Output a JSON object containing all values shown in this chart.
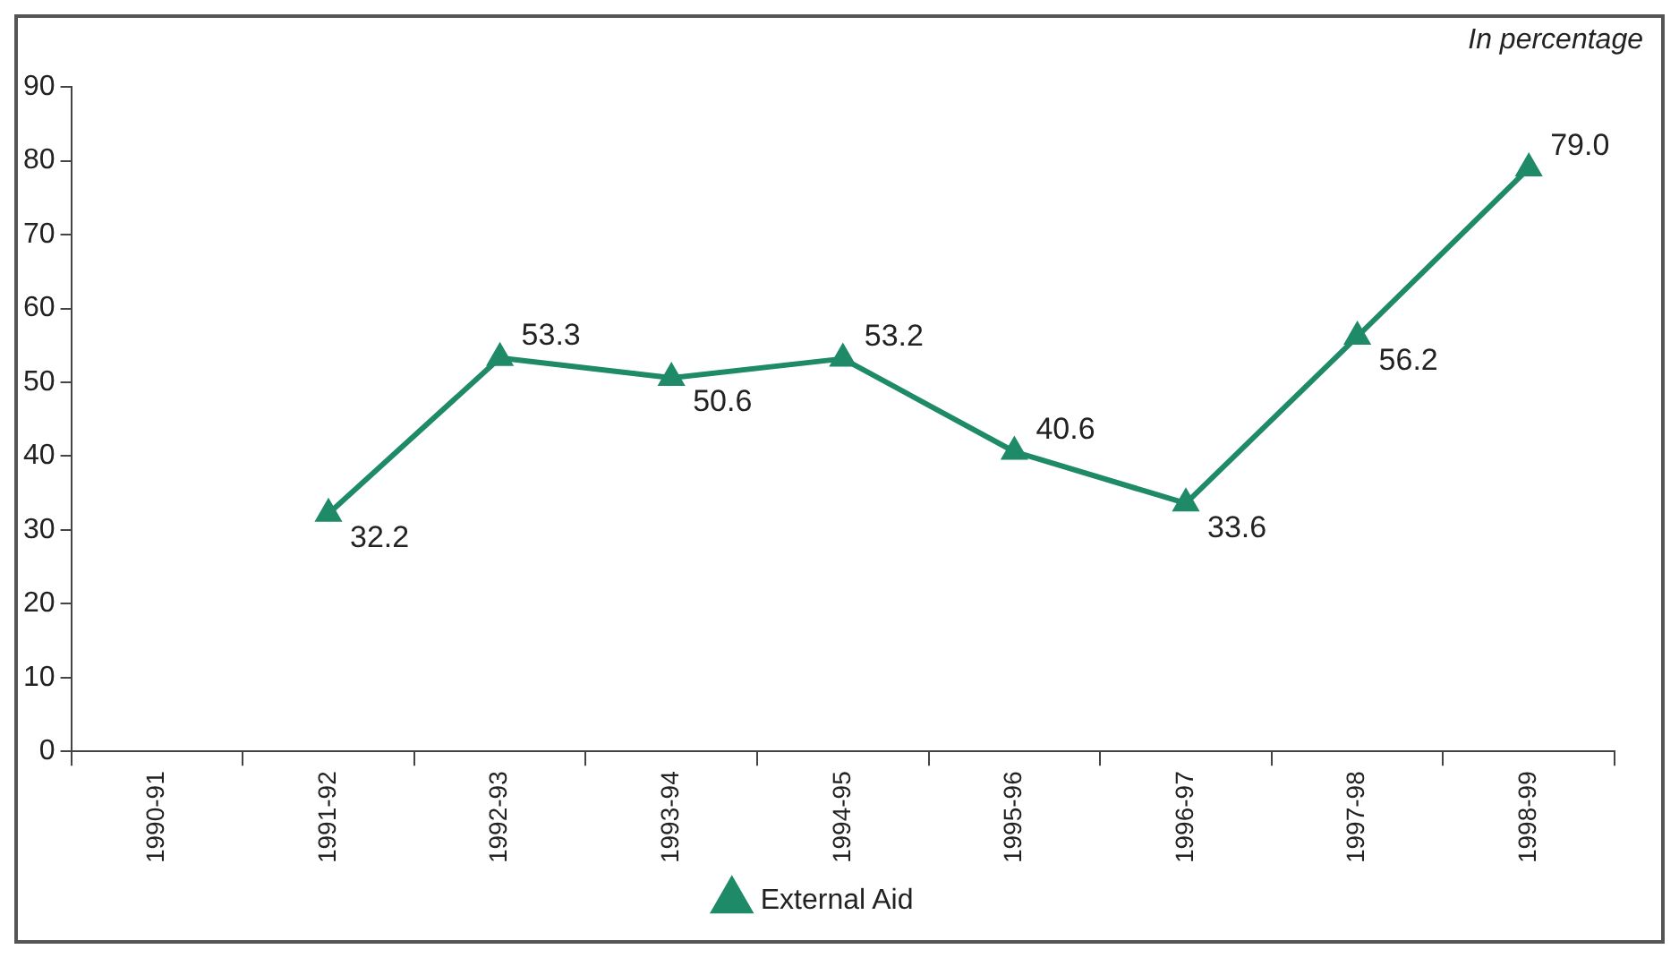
{
  "chart_data": {
    "type": "line",
    "annotations": [
      "In percentage"
    ],
    "categories": [
      "1990-91",
      "1991-92",
      "1992-93",
      "1993-94",
      "1994-95",
      "1995-96",
      "1996-97",
      "1997-98",
      "1998-99"
    ],
    "series": [
      {
        "name": "External Aid",
        "color": "#1e8a68",
        "values": [
          null,
          32.2,
          53.3,
          50.6,
          53.2,
          40.6,
          33.6,
          56.2,
          79.0
        ],
        "value_labels": [
          null,
          "32.2",
          "53.3",
          "50.6",
          "53.2",
          "40.6",
          "33.6",
          "56.2",
          "79.0"
        ]
      }
    ],
    "ylim": [
      0,
      90
    ],
    "yticks": [
      0,
      10,
      20,
      30,
      40,
      50,
      60,
      70,
      80,
      90
    ],
    "legend": "bottom",
    "marker": "triangle",
    "line_style": "solid"
  }
}
